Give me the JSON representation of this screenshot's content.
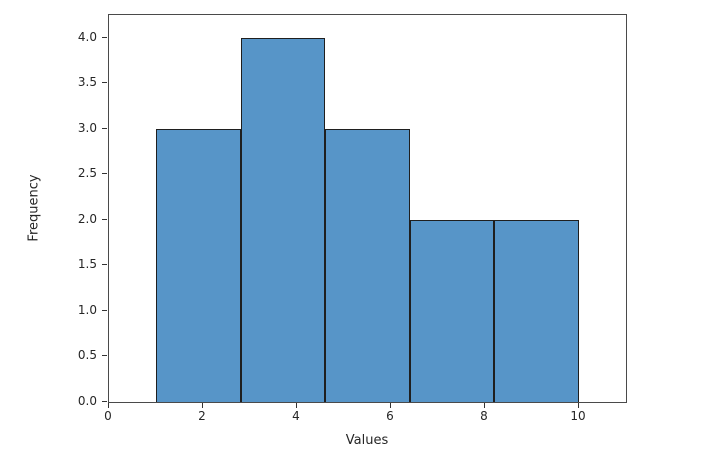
{
  "chart_data": {
    "type": "bar",
    "subtype": "histogram",
    "title": "",
    "xlabel": "Values",
    "ylabel": "Frequency",
    "bin_edges": [
      1,
      2.8,
      4.6,
      6.4,
      8.2,
      10
    ],
    "counts": [
      3,
      4,
      3,
      2,
      2
    ],
    "xlim": [
      0,
      11
    ],
    "ylim": [
      0,
      4.25
    ],
    "x_ticks": [
      0,
      2,
      4,
      6,
      8,
      10
    ],
    "x_tick_labels": [
      "0",
      "2",
      "4",
      "6",
      "8",
      "10"
    ],
    "y_ticks": [
      0,
      0.5,
      1,
      1.5,
      2,
      2.5,
      3,
      3.5,
      4
    ],
    "y_tick_labels": [
      "0.0",
      "0.5",
      "1.0",
      "1.5",
      "2.0",
      "2.5",
      "3.0",
      "3.5",
      "4.0"
    ],
    "grid": false,
    "legend": null,
    "bar_fill_color": "#5795C8",
    "bar_edge_color": "#1f1f1f",
    "background_color": "#ffffff"
  }
}
